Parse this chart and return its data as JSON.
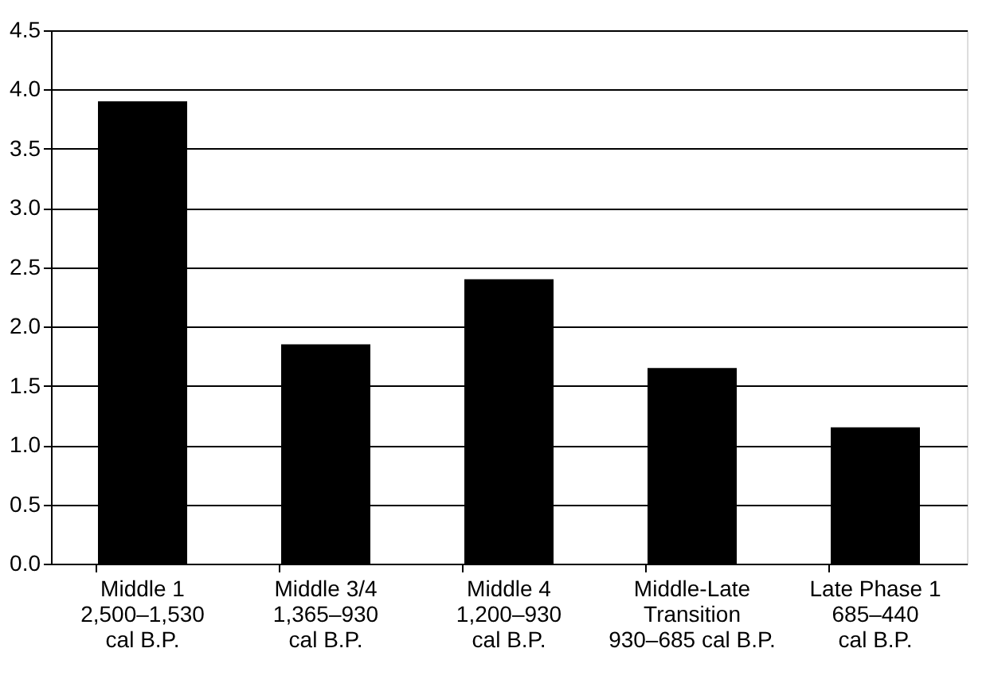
{
  "chart_data": {
    "type": "bar",
    "categories": [
      "Middle 1\n2,500–1,530\ncal B.P.",
      "Middle 3/4\n1,365–930\ncal B.P.",
      "Middle 4\n1,200–930\ncal B.P.",
      "Middle-Late\nTransition\n930–685 cal B.P.",
      "Late Phase 1\n685–440\ncal B.P."
    ],
    "values": [
      3.9,
      1.85,
      2.4,
      1.65,
      1.15
    ],
    "color": "#000000",
    "ylim": [
      0,
      4.5
    ],
    "yticks": [
      {
        "value": 0,
        "label": "0.0"
      },
      {
        "value": 0.5,
        "label": "0.5"
      },
      {
        "value": 1,
        "label": "1.0"
      },
      {
        "value": 1.5,
        "label": "1.5"
      },
      {
        "value": 2,
        "label": "2.0"
      },
      {
        "value": 2.5,
        "label": "2.5"
      },
      {
        "value": 3,
        "label": "3.0"
      },
      {
        "value": 3.5,
        "label": "3.5"
      },
      {
        "value": 4,
        "label": "4.0"
      },
      {
        "value": 4.5,
        "label": "4.5"
      }
    ],
    "grid": "y"
  }
}
